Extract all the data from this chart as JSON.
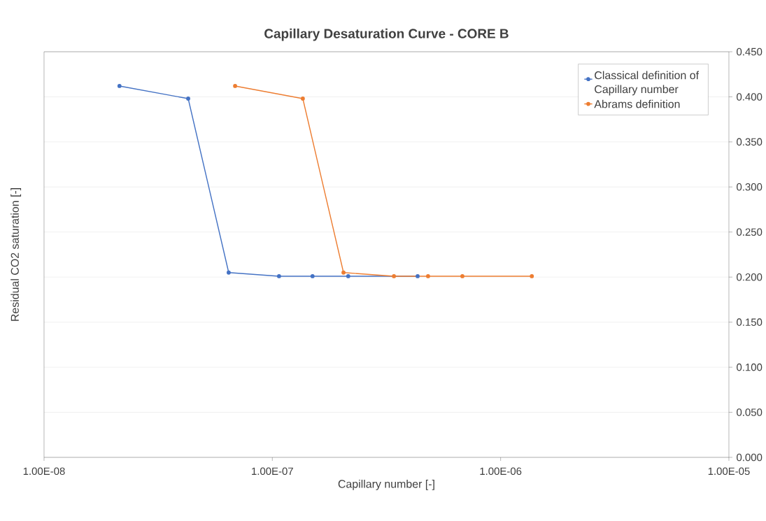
{
  "chart_data": {
    "type": "line",
    "title": "Capillary Desaturation Curve - CORE B",
    "xlabel": "Capillary number [-]",
    "ylabel": "Residual CO2 saturation [-]",
    "series": [
      {
        "name": "Classical definition of Capillary number",
        "color": "#4472c4",
        "x": [
          2.14e-08,
          4.28e-08,
          6.44e-08,
          1.07e-07,
          1.5e-07,
          2.15e-07,
          4.33e-07
        ],
        "values": [
          0.412,
          0.398,
          0.205,
          0.201,
          0.201,
          0.201,
          0.201
        ]
      },
      {
        "name": "Abrams definition",
        "color": "#ed7d31",
        "x": [
          6.87e-08,
          1.36e-07,
          2.05e-07,
          3.41e-07,
          4.81e-07,
          6.8e-07,
          1.37e-06
        ],
        "values": [
          0.412,
          0.398,
          0.205,
          0.201,
          0.201,
          0.201,
          0.201
        ]
      }
    ],
    "log": "x",
    "xlim": [
      1e-08,
      1e-05
    ],
    "ylim": [
      0,
      0.45
    ],
    "xticks": [
      {
        "value": 1e-08,
        "label": "1.00E-08"
      },
      {
        "value": 1e-07,
        "label": "1.00E-07"
      },
      {
        "value": 1e-06,
        "label": "1.00E-06"
      },
      {
        "value": 1e-05,
        "label": "1.00E-05"
      }
    ],
    "yticks": [
      {
        "value": 0,
        "label": "0.000"
      },
      {
        "value": 0.05,
        "label": "0.050"
      },
      {
        "value": 0.1,
        "label": "0.100"
      },
      {
        "value": 0.15,
        "label": "0.150"
      },
      {
        "value": 0.2,
        "label": "0.200"
      },
      {
        "value": 0.25,
        "label": "0.250"
      },
      {
        "value": 0.3,
        "label": "0.300"
      },
      {
        "value": 0.35,
        "label": "0.350"
      },
      {
        "value": 0.4,
        "label": "0.400"
      },
      {
        "value": 0.45,
        "label": "0.450"
      }
    ],
    "grid": "y",
    "legend": "top right",
    "marker": "circle",
    "line_style": "solid"
  }
}
